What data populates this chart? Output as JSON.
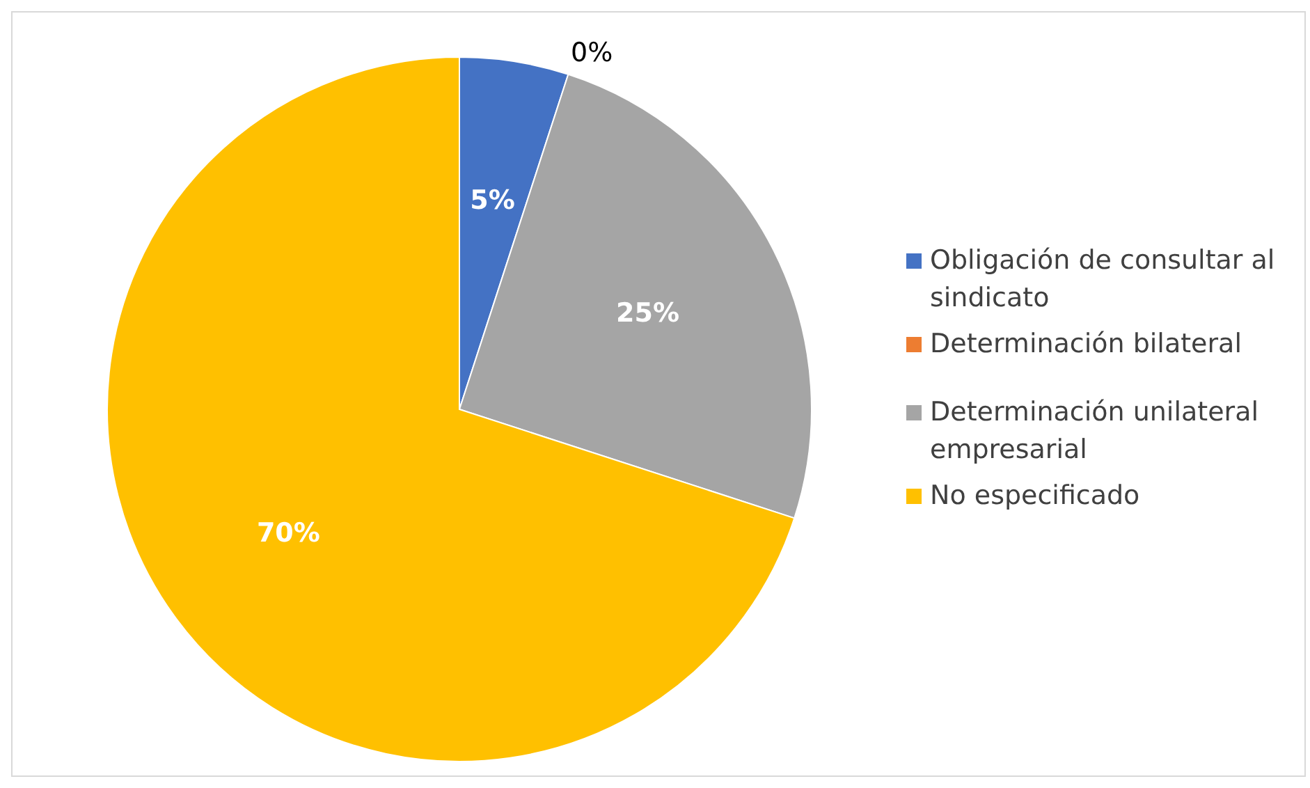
{
  "chart_data": {
    "type": "pie",
    "categories": [
      "Obligación de consultar al sindicato",
      "Determinación bilateral",
      "Determinación unilateral empresarial",
      "No especificado"
    ],
    "values": [
      5,
      0,
      25,
      70
    ],
    "colors": [
      "#4472c4",
      "#ed7d31",
      "#a5a5a5",
      "#ffc000"
    ],
    "value_labels": [
      "5%",
      "0%",
      "25%",
      "70%"
    ],
    "legend": "right"
  }
}
